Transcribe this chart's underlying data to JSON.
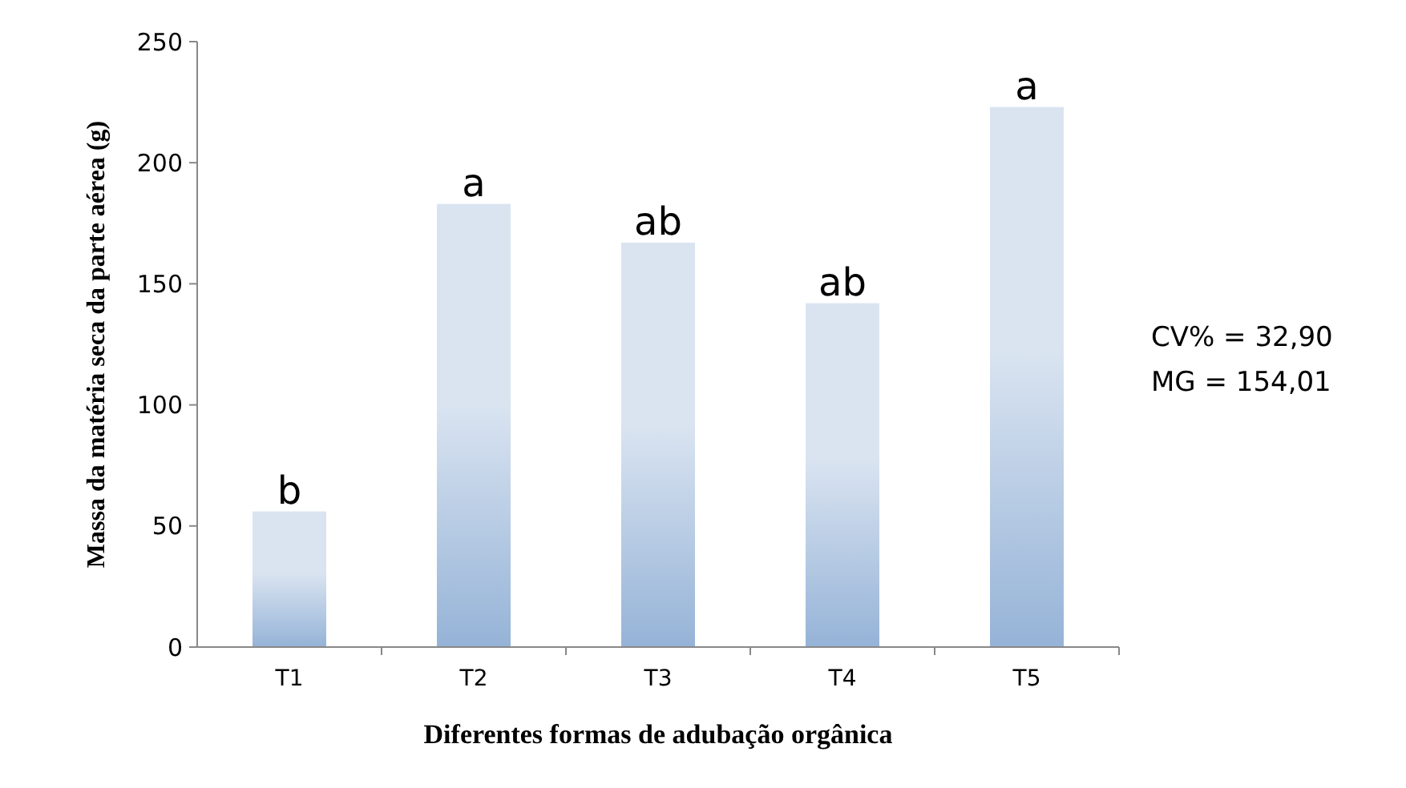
{
  "chart_data": {
    "type": "bar",
    "xlabel": "Diferentes formas de adubação orgânica",
    "ylabel": "Massa da matéria seca da parte aérea (g)",
    "categories": [
      "T1",
      "T2",
      "T3",
      "T4",
      "T5"
    ],
    "values": [
      56,
      183,
      167,
      142,
      223
    ],
    "value_labels": [
      "b",
      "a",
      "ab",
      "ab",
      "a"
    ],
    "color": "#95b3d7",
    "ylim": [
      0,
      250
    ],
    "yticks": [
      0,
      50,
      100,
      150,
      200,
      250
    ],
    "grid": false,
    "annotations": [
      "CV% = 32,90",
      "MG = 154,01"
    ]
  }
}
